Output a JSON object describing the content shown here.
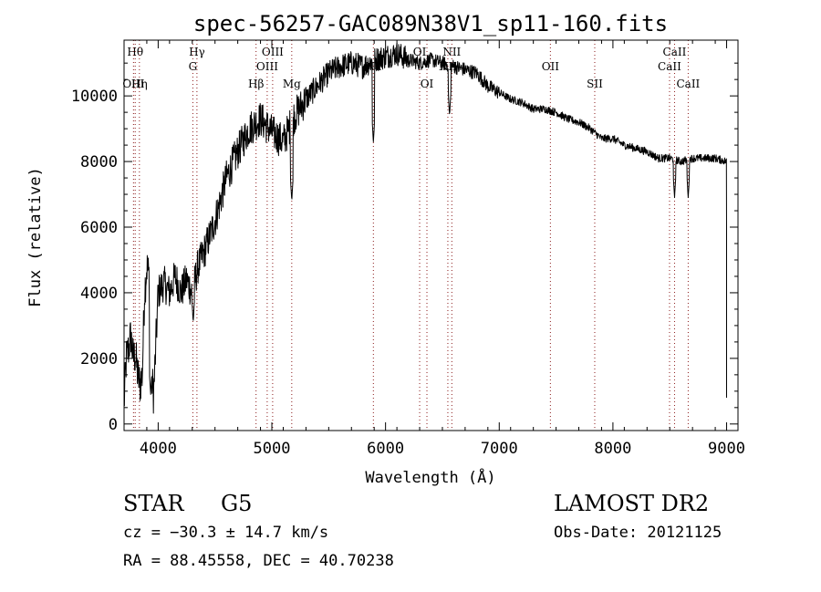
{
  "chart_data": {
    "type": "line",
    "title": "spec-56257-GAC089N38V1_sp11-160.fits",
    "xlabel": "Wavelength (Å)",
    "ylabel": "Flux (relative)",
    "xlim": [
      3700,
      9100
    ],
    "ylim": [
      -200,
      11700
    ],
    "xticks": [
      4000,
      5000,
      6000,
      7000,
      8000,
      9000
    ],
    "yticks": [
      0,
      2000,
      4000,
      6000,
      8000,
      10000
    ],
    "grid": false,
    "series": [
      {
        "name": "spectrum",
        "x": [
          3700,
          3720,
          3740,
          3760,
          3780,
          3800,
          3820,
          3840,
          3860,
          3880,
          3900,
          3920,
          3940,
          3960,
          3980,
          4000,
          4050,
          4100,
          4150,
          4200,
          4250,
          4300,
          4350,
          4400,
          4500,
          4600,
          4700,
          4800,
          4900,
          5000,
          5100,
          5200,
          5300,
          5400,
          5500,
          5600,
          5700,
          5800,
          5900,
          6000,
          6100,
          6200,
          6300,
          6400,
          6500,
          6600,
          6700,
          6800,
          6900,
          7000,
          7100,
          7200,
          7300,
          7400,
          7500,
          7600,
          7700,
          7800,
          7900,
          8000,
          8100,
          8200,
          8300,
          8400,
          8500,
          8600,
          8700,
          8800,
          8900,
          9000
        ],
        "y": [
          600,
          2000,
          2300,
          2700,
          2000,
          2100,
          1500,
          1200,
          1500,
          4000,
          4800,
          4500,
          1500,
          900,
          2400,
          4000,
          4300,
          4000,
          4500,
          4000,
          4400,
          4000,
          4800,
          5200,
          6200,
          7500,
          8300,
          9000,
          9300,
          8900,
          8600,
          9400,
          9900,
          10300,
          10700,
          10900,
          11000,
          10900,
          11100,
          11200,
          11300,
          11100,
          11000,
          11100,
          11000,
          10900,
          10800,
          10700,
          10300,
          10100,
          9900,
          9800,
          9600,
          9600,
          9500,
          9300,
          9200,
          9000,
          8700,
          8700,
          8500,
          8400,
          8300,
          8100,
          8100,
          8000,
          8100,
          8100,
          8100,
          8000
        ]
      }
    ],
    "absorption_dips": [
      {
        "x": 3934,
        "y": 900
      },
      {
        "x": 4308,
        "y": 3100
      },
      {
        "x": 5175,
        "y": 6800
      },
      {
        "x": 5893,
        "y": 8600
      },
      {
        "x": 6563,
        "y": 9400
      },
      {
        "x": 8542,
        "y": 6900
      },
      {
        "x": 8662,
        "y": 6900
      }
    ],
    "lines": [
      {
        "label": "Hθ",
        "wavelength": 3798,
        "row": 0
      },
      {
        "label": "OIII",
        "wavelength": 3783,
        "row": 2
      },
      {
        "label": "Hη",
        "wavelength": 3835,
        "row": 2
      },
      {
        "label": "Hγ",
        "wavelength": 4341,
        "row": 0
      },
      {
        "label": "G",
        "wavelength": 4305,
        "row": 1
      },
      {
        "label": "Hβ",
        "wavelength": 4861,
        "row": 2
      },
      {
        "label": "OIII",
        "wavelength": 5007,
        "row": 0
      },
      {
        "label": "OIII",
        "wavelength": 4959,
        "row": 1
      },
      {
        "label": "Mg",
        "wavelength": 5175,
        "row": 2
      },
      {
        "label": "Na",
        "wavelength": 5893,
        "row": 1
      },
      {
        "label": "OI",
        "wavelength": 6300,
        "row": 0
      },
      {
        "label": "OI",
        "wavelength": 6364,
        "row": 2
      },
      {
        "label": "NII",
        "wavelength": 6583,
        "row": 0
      },
      {
        "label": "NII",
        "wavelength": 6548,
        "row": 1
      },
      {
        "label": "OII",
        "wavelength": 7450,
        "row": 1
      },
      {
        "label": "SII",
        "wavelength": 7840,
        "row": 2
      },
      {
        "label": "CaII",
        "wavelength": 8542,
        "row": 0
      },
      {
        "label": "CaII",
        "wavelength": 8498,
        "row": 1
      },
      {
        "label": "CaII",
        "wavelength": 8662,
        "row": 2
      }
    ]
  },
  "info": {
    "class_label": "STAR",
    "subclass": "G5",
    "survey": "LAMOST DR2",
    "cz": "cz = −30.3 ± 14.7 km/s",
    "obs_date": "Obs-Date: 20121125",
    "coords": "RA =  88.45558, DEC =  40.70238"
  }
}
